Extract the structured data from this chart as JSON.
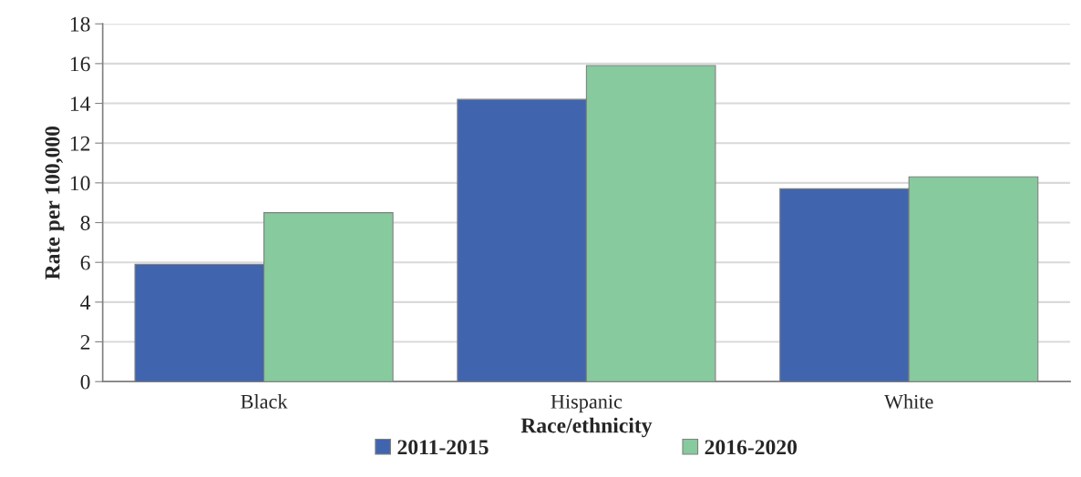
{
  "chart_data": {
    "type": "bar",
    "xlabel": "Race/ethnicity",
    "ylabel": "Rate per 100,000",
    "categories": [
      "Black",
      "Hispanic",
      "White"
    ],
    "series": [
      {
        "name": "2011-2015",
        "color": "#4065ae",
        "values": [
          5.9,
          14.2,
          9.7
        ]
      },
      {
        "name": "2016-2020",
        "color": "#86ca9e",
        "values": [
          8.5,
          15.9,
          10.3
        ]
      }
    ],
    "ylim": [
      0,
      18
    ],
    "yticks": [
      0,
      2,
      4,
      6,
      8,
      10,
      12,
      14,
      16,
      18
    ],
    "grid": "y",
    "legend": "bottom"
  }
}
